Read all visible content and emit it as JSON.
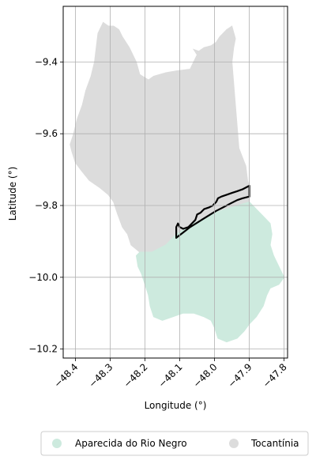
{
  "chart_data": {
    "type": "map",
    "xlabel": "Longitude (°)",
    "ylabel": "Latitude (°)",
    "xlim": [
      -48.435,
      -47.79
    ],
    "ylim": [
      -10.225,
      -9.245
    ],
    "grid": true,
    "x_ticks": [
      {
        "value": -48.4,
        "label": "−48.4"
      },
      {
        "value": -48.3,
        "label": "−48.3"
      },
      {
        "value": -48.2,
        "label": "−48.2"
      },
      {
        "value": -48.1,
        "label": "−48.1"
      },
      {
        "value": -48.0,
        "label": "−48.0"
      },
      {
        "value": -47.9,
        "label": "−47.9"
      },
      {
        "value": -47.8,
        "label": "−47.8"
      }
    ],
    "y_ticks": [
      {
        "value": -9.4,
        "label": "−9.4"
      },
      {
        "value": -9.6,
        "label": "−9.6"
      },
      {
        "value": -9.8,
        "label": "−9.8"
      },
      {
        "value": -10.0,
        "label": "−10.0"
      },
      {
        "value": -10.2,
        "label": "−10.2"
      }
    ],
    "regions": [
      {
        "name": "Tocantínia",
        "color": "#dcdcdc",
        "coords": [
          [
            -48.32,
            -9.29
          ],
          [
            -48.305,
            -9.3
          ],
          [
            -48.29,
            -9.3
          ],
          [
            -48.275,
            -9.31
          ],
          [
            -48.265,
            -9.33
          ],
          [
            -48.255,
            -9.345
          ],
          [
            -48.245,
            -9.36
          ],
          [
            -48.235,
            -9.38
          ],
          [
            -48.225,
            -9.4
          ],
          [
            -48.215,
            -9.435
          ],
          [
            -48.19,
            -9.45
          ],
          [
            -48.175,
            -9.44
          ],
          [
            -48.14,
            -9.43
          ],
          [
            -48.11,
            -9.425
          ],
          [
            -48.07,
            -9.42
          ],
          [
            -48.06,
            -9.4
          ],
          [
            -48.05,
            -9.38
          ],
          [
            -48.06,
            -9.365
          ],
          [
            -48.045,
            -9.37
          ],
          [
            -48.03,
            -9.36
          ],
          [
            -48.01,
            -9.355
          ],
          [
            -47.995,
            -9.345
          ],
          [
            -47.985,
            -9.33
          ],
          [
            -47.975,
            -9.32
          ],
          [
            -47.965,
            -9.31
          ],
          [
            -47.95,
            -9.3
          ],
          [
            -47.94,
            -9.335
          ],
          [
            -47.945,
            -9.36
          ],
          [
            -47.95,
            -9.4
          ],
          [
            -47.945,
            -9.46
          ],
          [
            -47.94,
            -9.52
          ],
          [
            -47.935,
            -9.58
          ],
          [
            -47.93,
            -9.64
          ],
          [
            -47.91,
            -9.69
          ],
          [
            -47.905,
            -9.73
          ],
          [
            -47.9,
            -9.75
          ],
          [
            -47.9,
            -9.79
          ],
          [
            -48.0,
            -9.82
          ],
          [
            -48.06,
            -9.85
          ],
          [
            -48.11,
            -9.88
          ],
          [
            -48.14,
            -9.91
          ],
          [
            -48.18,
            -9.93
          ],
          [
            -48.215,
            -9.93
          ],
          [
            -48.24,
            -9.91
          ],
          [
            -48.25,
            -9.88
          ],
          [
            -48.265,
            -9.86
          ],
          [
            -48.28,
            -9.82
          ],
          [
            -48.29,
            -9.79
          ],
          [
            -48.305,
            -9.77
          ],
          [
            -48.33,
            -9.75
          ],
          [
            -48.36,
            -9.73
          ],
          [
            -48.385,
            -9.7
          ],
          [
            -48.4,
            -9.68
          ],
          [
            -48.41,
            -9.65
          ],
          [
            -48.415,
            -9.63
          ],
          [
            -48.405,
            -9.6
          ],
          [
            -48.395,
            -9.56
          ],
          [
            -48.38,
            -9.52
          ],
          [
            -48.37,
            -9.48
          ],
          [
            -48.355,
            -9.44
          ],
          [
            -48.345,
            -9.4
          ],
          [
            -48.34,
            -9.36
          ],
          [
            -48.335,
            -9.32
          ]
        ]
      },
      {
        "name": "Aparecida do Rio Negro",
        "color": "#cdeade",
        "coords": [
          [
            -47.9,
            -9.79
          ],
          [
            -47.88,
            -9.81
          ],
          [
            -47.86,
            -9.83
          ],
          [
            -47.84,
            -9.85
          ],
          [
            -47.835,
            -9.88
          ],
          [
            -47.84,
            -9.91
          ],
          [
            -47.83,
            -9.94
          ],
          [
            -47.82,
            -9.96
          ],
          [
            -47.81,
            -9.98
          ],
          [
            -47.8,
            -10.0
          ],
          [
            -47.815,
            -10.02
          ],
          [
            -47.84,
            -10.03
          ],
          [
            -47.85,
            -10.05
          ],
          [
            -47.86,
            -10.08
          ],
          [
            -47.88,
            -10.11
          ],
          [
            -47.9,
            -10.13
          ],
          [
            -47.915,
            -10.15
          ],
          [
            -47.935,
            -10.17
          ],
          [
            -47.965,
            -10.18
          ],
          [
            -47.99,
            -10.17
          ],
          [
            -48.0,
            -10.14
          ],
          [
            -48.01,
            -10.12
          ],
          [
            -48.03,
            -10.11
          ],
          [
            -48.06,
            -10.1
          ],
          [
            -48.09,
            -10.1
          ],
          [
            -48.12,
            -10.11
          ],
          [
            -48.15,
            -10.12
          ],
          [
            -48.175,
            -10.11
          ],
          [
            -48.185,
            -10.08
          ],
          [
            -48.19,
            -10.05
          ],
          [
            -48.2,
            -10.02
          ],
          [
            -48.21,
            -9.99
          ],
          [
            -48.22,
            -9.97
          ],
          [
            -48.225,
            -9.94
          ],
          [
            -48.215,
            -9.93
          ],
          [
            -48.18,
            -9.93
          ],
          [
            -48.14,
            -9.91
          ],
          [
            -48.11,
            -9.88
          ],
          [
            -48.06,
            -9.85
          ],
          [
            -48.0,
            -9.82
          ]
        ]
      },
      {
        "name": "outline",
        "coords": [
          [
            -48.11,
            -9.89
          ],
          [
            -48.11,
            -9.86
          ],
          [
            -48.105,
            -9.85
          ],
          [
            -48.1,
            -9.86
          ],
          [
            -48.09,
            -9.865
          ],
          [
            -48.075,
            -9.86
          ],
          [
            -48.065,
            -9.85
          ],
          [
            -48.055,
            -9.84
          ],
          [
            -48.05,
            -9.825
          ],
          [
            -48.04,
            -9.82
          ],
          [
            -48.03,
            -9.81
          ],
          [
            -48.015,
            -9.805
          ],
          [
            -48.005,
            -9.8
          ],
          [
            -47.995,
            -9.79
          ],
          [
            -47.99,
            -9.78
          ],
          [
            -47.98,
            -9.775
          ],
          [
            -47.965,
            -9.77
          ],
          [
            -47.95,
            -9.765
          ],
          [
            -47.935,
            -9.76
          ],
          [
            -47.92,
            -9.755
          ],
          [
            -47.9,
            -9.745
          ],
          [
            -47.9,
            -9.775
          ],
          [
            -47.92,
            -9.78
          ],
          [
            -47.935,
            -9.785
          ],
          [
            -47.955,
            -9.795
          ],
          [
            -47.975,
            -9.805
          ],
          [
            -47.995,
            -9.815
          ],
          [
            -48.02,
            -9.83
          ],
          [
            -48.045,
            -9.845
          ],
          [
            -48.07,
            -9.86
          ],
          [
            -48.09,
            -9.875
          ],
          [
            -48.11,
            -9.89
          ]
        ]
      }
    ],
    "legend": {
      "placement": "bottom",
      "entries": [
        {
          "label": "Aparecida do Rio Negro",
          "color": "#cdeade"
        },
        {
          "label": "Tocantínia",
          "color": "#dcdcdc"
        }
      ]
    }
  }
}
